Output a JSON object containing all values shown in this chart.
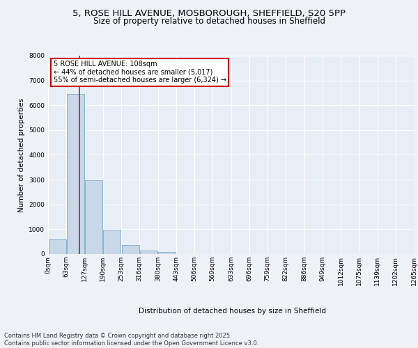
{
  "title_line1": "5, ROSE HILL AVENUE, MOSBOROUGH, SHEFFIELD, S20 5PP",
  "title_line2": "Size of property relative to detached houses in Sheffield",
  "xlabel": "Distribution of detached houses by size in Sheffield",
  "ylabel": "Number of detached properties",
  "bin_labels": [
    "0sqm",
    "63sqm",
    "127sqm",
    "190sqm",
    "253sqm",
    "316sqm",
    "380sqm",
    "443sqm",
    "506sqm",
    "569sqm",
    "633sqm",
    "696sqm",
    "759sqm",
    "822sqm",
    "886sqm",
    "949sqm",
    "1012sqm",
    "1075sqm",
    "1139sqm",
    "1202sqm",
    "1265sqm"
  ],
  "bar_values": [
    600,
    6450,
    2980,
    970,
    360,
    150,
    75,
    0,
    0,
    0,
    0,
    0,
    0,
    0,
    0,
    0,
    0,
    0,
    0,
    0
  ],
  "bar_color": "#c8d8e8",
  "bar_edgecolor": "#7aaac8",
  "annotation_text": "5 ROSE HILL AVENUE: 108sqm\n← 44% of detached houses are smaller (5,017)\n55% of semi-detached houses are larger (6,324) →",
  "annotation_box_color": "#ffffff",
  "annotation_border_color": "#cc0000",
  "ylim": [
    0,
    8000
  ],
  "yticks": [
    0,
    1000,
    2000,
    3000,
    4000,
    5000,
    6000,
    7000,
    8000
  ],
  "footer_text": "Contains HM Land Registry data © Crown copyright and database right 2025.\nContains public sector information licensed under the Open Government Licence v3.0.",
  "bg_color": "#eef2f7",
  "plot_bg_color": "#e8eef6",
  "grid_color": "#ffffff",
  "title_fontsize": 9.5,
  "subtitle_fontsize": 8.5,
  "tick_fontsize": 6.5,
  "label_fontsize": 7.5,
  "footer_fontsize": 6.0
}
